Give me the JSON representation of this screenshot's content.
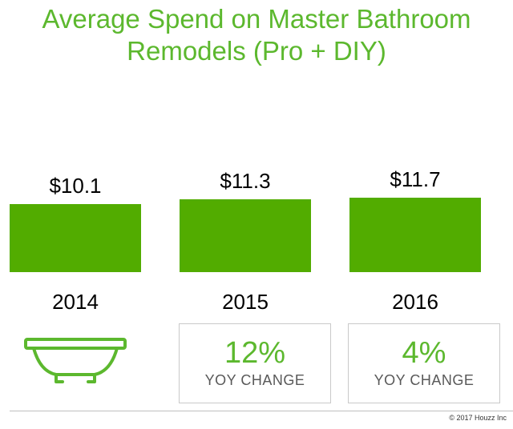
{
  "chart_data": {
    "type": "bar",
    "title": "Average Spend on Master Bathroom Remodels (Pro + DIY)",
    "title_lines": [
      "Average Spend on Master Bathroom",
      "Remodels (Pro + DIY)"
    ],
    "categories": [
      "2014",
      "2015",
      "2016"
    ],
    "values": [
      10.1,
      11.3,
      11.7
    ],
    "value_labels": [
      "$10.1",
      "$11.3",
      "$11.7"
    ],
    "ylim": [
      0,
      16
    ],
    "grid": false,
    "bar_color": "#52ac00"
  },
  "yoy": [
    {
      "pct": "12%",
      "label": "YOY CHANGE"
    },
    {
      "pct": "4%",
      "label": "YOY CHANGE"
    }
  ],
  "icons": {
    "tub": "bathtub-icon"
  },
  "colors": {
    "accent": "#5cb82e",
    "bar": "#52ac00"
  },
  "footer": {
    "copyright": "© 2017 Houzz Inc"
  }
}
